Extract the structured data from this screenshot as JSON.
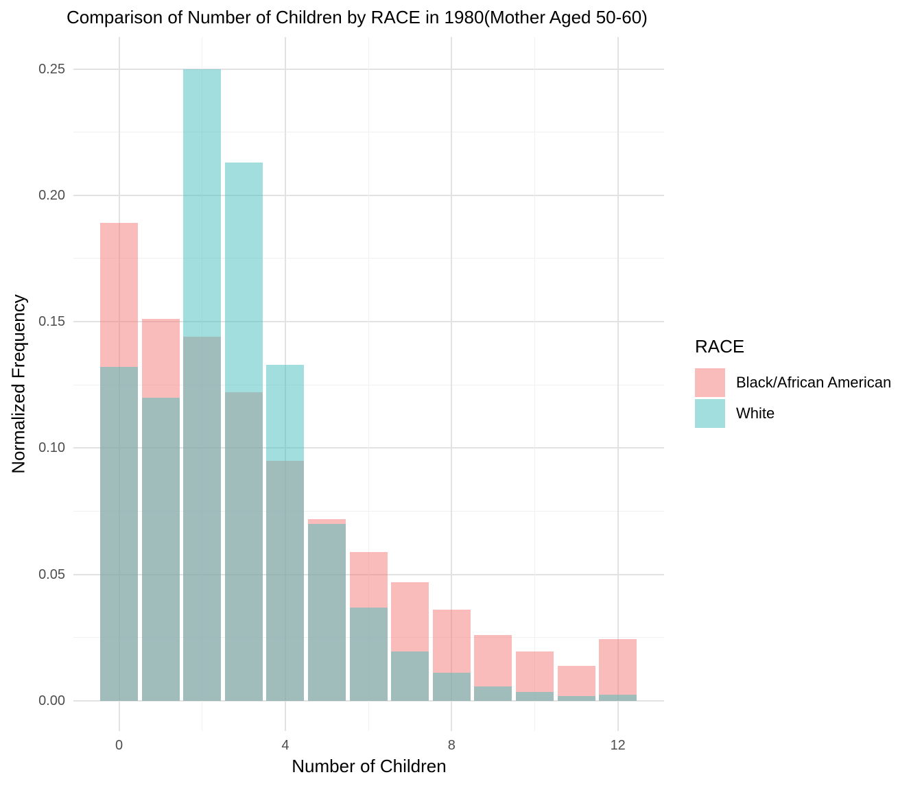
{
  "title": "Comparison of Number of Children by RACE in 1980(Mother Aged 50-60)",
  "axes": {
    "x_label": "Number of Children",
    "y_label": "Normalized Frequency"
  },
  "legend": {
    "title": "RACE",
    "items": [
      {
        "label": "Black/African American",
        "swatch": "#F9BCBB"
      },
      {
        "label": "White",
        "swatch": "#A3DEDE"
      }
    ],
    "position": "right"
  },
  "chart_data": {
    "type": "bar",
    "subtype": "overlaid-histogram",
    "title": "Comparison of Number of Children by RACE in 1980(Mother Aged 50-60)",
    "xlabel": "Number of Children",
    "ylabel": "Normalized Frequency",
    "x": [
      0,
      1,
      2,
      3,
      4,
      5,
      6,
      7,
      8,
      9,
      10,
      11,
      12
    ],
    "series": [
      {
        "name": "Black/African American",
        "fill_rgba": "rgba(243,121,119,0.5)",
        "flat_color": "#F9BCBB",
        "values": [
          0.189,
          0.151,
          0.144,
          0.122,
          0.095,
          0.072,
          0.059,
          0.047,
          0.036,
          0.026,
          0.0196,
          0.0138,
          0.0243
        ]
      },
      {
        "name": "White",
        "fill_rgba": "rgba(71,189,189,0.5)",
        "flat_color": "#A3DEDE",
        "values": [
          0.132,
          0.12,
          0.25,
          0.213,
          0.133,
          0.07,
          0.037,
          0.0195,
          0.011,
          0.0057,
          0.0035,
          0.0019,
          0.0024
        ]
      }
    ],
    "overlap_color": "#A0BCBC",
    "x_major_ticks": [
      0,
      4,
      8,
      12
    ],
    "x_minor_ticks": [
      2,
      6,
      10
    ],
    "y_major_ticks": [
      0,
      0.05,
      0.1,
      0.15,
      0.2,
      0.25
    ],
    "y_tick_labels": [
      "0.00",
      "0.05",
      "0.10",
      "0.15",
      "0.20",
      "0.25"
    ],
    "y_minor_ticks": [
      0.025,
      0.075,
      0.125,
      0.175,
      0.225
    ],
    "ylim": [
      0,
      0.25
    ],
    "bar_rel_width": 0.9,
    "grid": true,
    "legend_position": "right"
  }
}
